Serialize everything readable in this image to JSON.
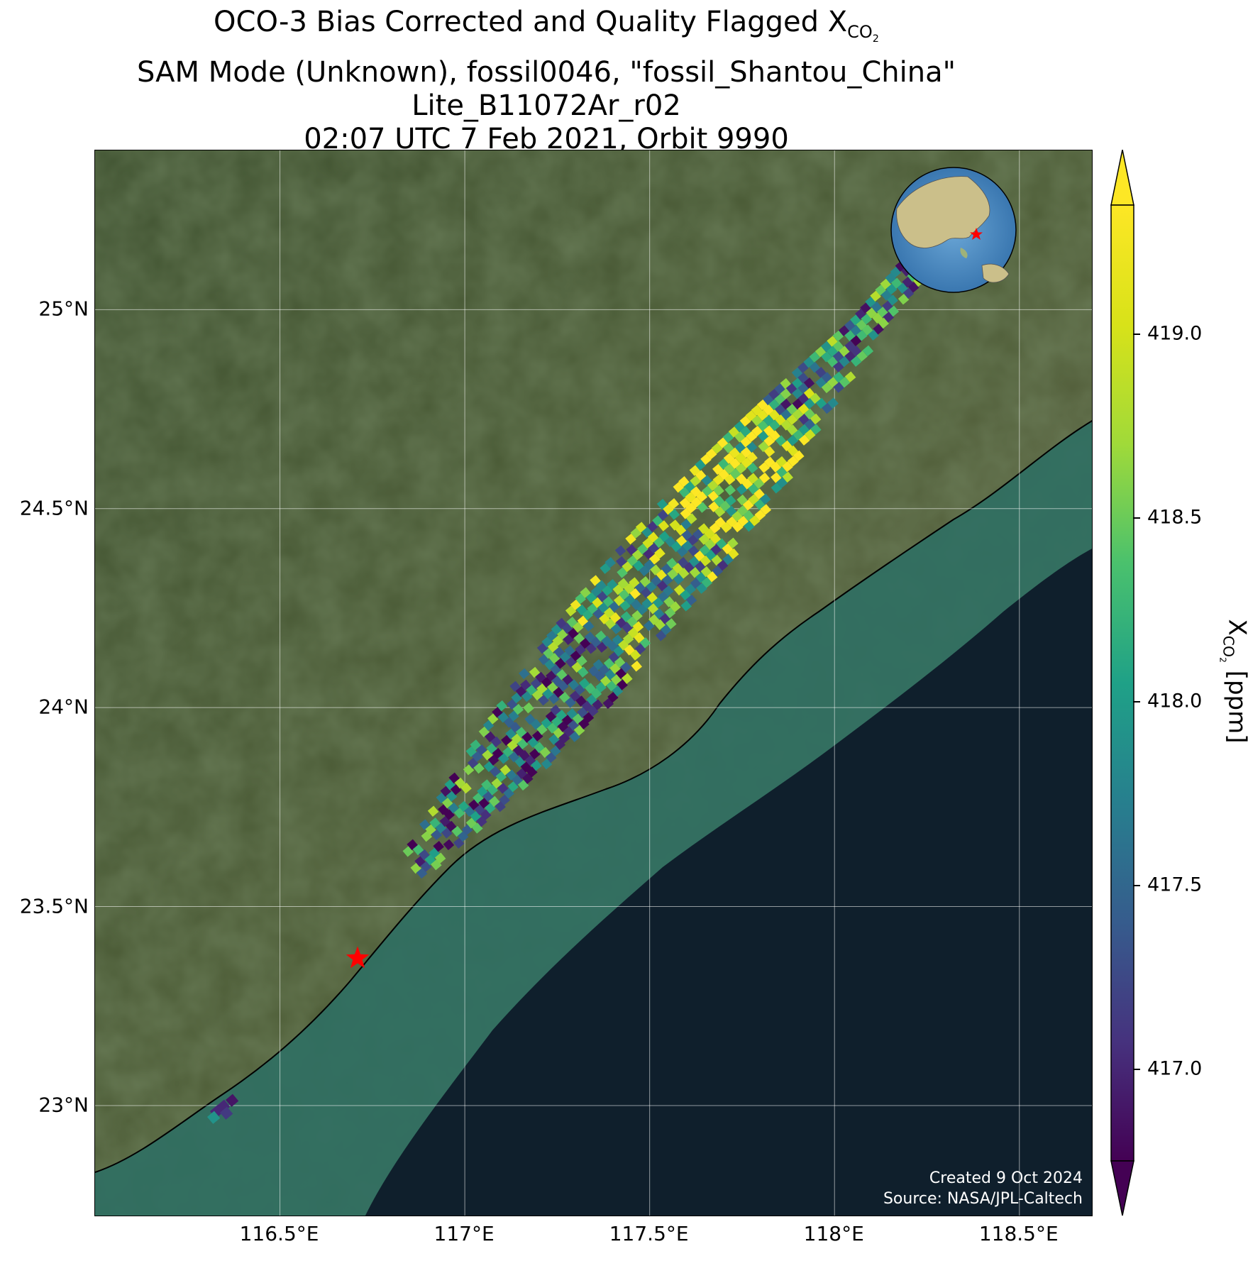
{
  "title": {
    "line1_prefix": "OCO-3 Bias Corrected and Quality Flagged X",
    "line1_sub": "CO",
    "line1_sub2": "2",
    "line2": "SAM Mode (Unknown), fossil0046, \"fossil_Shantou_China\"",
    "line3": "Lite_B11072Ar_r02",
    "line4": "02:07 UTC 7 Feb 2021, Orbit 9990"
  },
  "map": {
    "lon_range": [
      116.0,
      118.7
    ],
    "lat_range": [
      22.72,
      25.4
    ],
    "lat_ticks": [
      {
        "value": 25.0,
        "label": "25°N"
      },
      {
        "value": 24.5,
        "label": "24.5°N"
      },
      {
        "value": 24.0,
        "label": "24°N"
      },
      {
        "value": 23.5,
        "label": "23.5°N"
      },
      {
        "value": 23.0,
        "label": "23°N"
      }
    ],
    "lon_ticks": [
      {
        "value": 116.5,
        "label": "116.5°E"
      },
      {
        "value": 117.0,
        "label": "117°E"
      },
      {
        "value": 117.5,
        "label": "117.5°E"
      },
      {
        "value": 118.0,
        "label": "118°E"
      },
      {
        "value": 118.5,
        "label": "118.5°E"
      }
    ],
    "target_site": {
      "lon": 116.71,
      "lat": 23.37,
      "marker": "red-star"
    },
    "land_color": "#4a5a33",
    "ocean_color": "#0f1f2c",
    "coastal_water_color": "#3d7a6a"
  },
  "chart_data": {
    "type": "heatmap",
    "variable": "XCO2",
    "units": "ppm",
    "swath": {
      "start": {
        "lon": 116.85,
        "lat": 23.6
      },
      "end": {
        "lon": 118.25,
        "lat": 25.15
      },
      "extra_cluster": {
        "lon": 116.33,
        "lat": 23.0
      }
    },
    "colorbar": {
      "vmin": 416.75,
      "vmax": 419.35,
      "colormap": "viridis",
      "extend": "both",
      "ticks": [
        {
          "value": 417.0,
          "label": "417.0"
        },
        {
          "value": 417.5,
          "label": "417.5"
        },
        {
          "value": 418.0,
          "label": "418.0"
        },
        {
          "value": 418.5,
          "label": "418.5"
        },
        {
          "value": 419.0,
          "label": "419.0"
        }
      ],
      "label_prefix": "X",
      "label_sub": "CO",
      "label_sub2": "2",
      "label_suffix": " [ppm]"
    }
  },
  "footer": {
    "created": "Created 9 Oct 2024",
    "source": "Source: NASA/JPL-Caltech"
  }
}
